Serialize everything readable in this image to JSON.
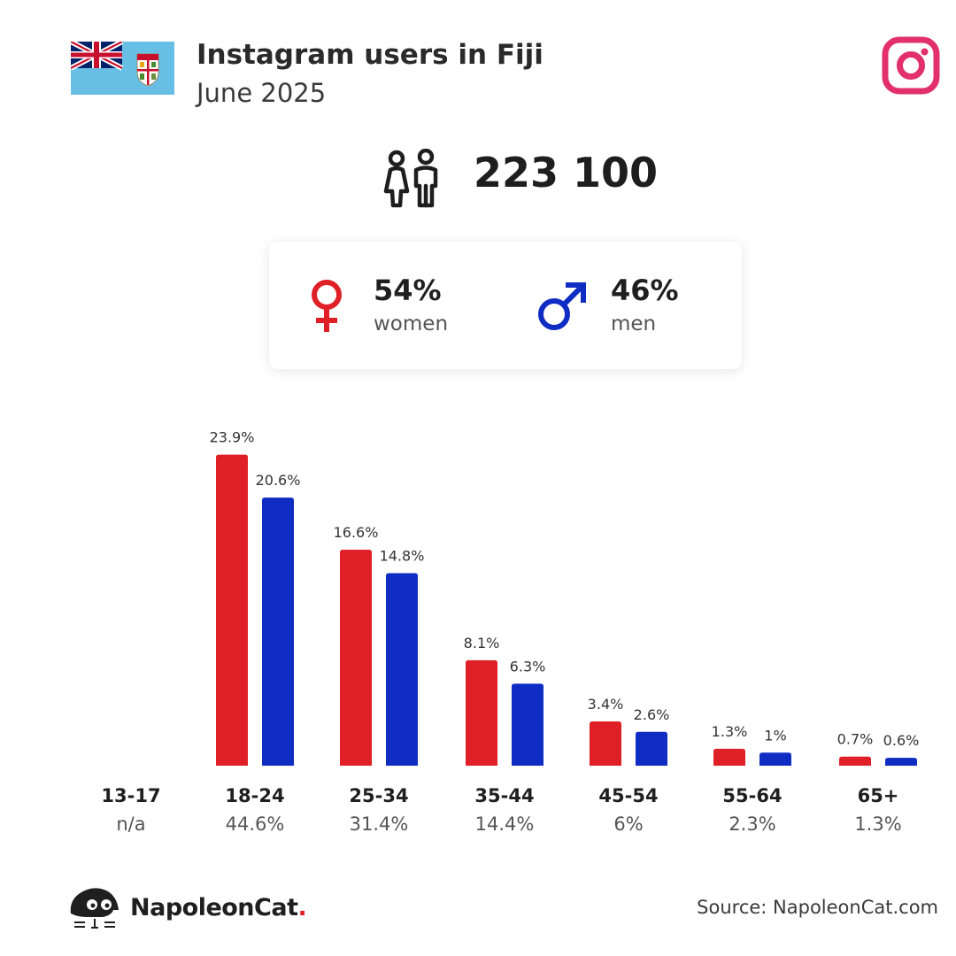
{
  "header": {
    "title": "Instagram users in Fiji",
    "subtitle": "June 2025"
  },
  "summary": {
    "total_users": "223 100",
    "women_pct": "54%",
    "women_label": "women",
    "men_pct": "46%",
    "men_label": "men"
  },
  "colors": {
    "women": "#df2027",
    "men": "#0f2dc3",
    "instagram": "#e1306c",
    "flag_blue": "#68bfe5"
  },
  "icons": {
    "flag": "fiji-flag-icon",
    "instagram": "instagram-icon",
    "people": "people-icon",
    "female": "female-symbol-icon",
    "male": "male-symbol-icon",
    "brand": "napoleoncat-logo-icon"
  },
  "chart_data": {
    "type": "bar",
    "categories": [
      "13-17",
      "18-24",
      "25-34",
      "35-44",
      "45-54",
      "55-64",
      "65+"
    ],
    "category_totals": [
      "n/a",
      "44.6%",
      "31.4%",
      "14.4%",
      "6%",
      "2.3%",
      "1.3%"
    ],
    "series": [
      {
        "key": "women",
        "values": [
          null,
          23.9,
          16.6,
          8.1,
          3.4,
          1.3,
          0.7
        ],
        "labels": [
          "",
          "23.9%",
          "16.6%",
          "8.1%",
          "3.4%",
          "1.3%",
          "0.7%"
        ]
      },
      {
        "key": "men",
        "values": [
          null,
          20.6,
          14.8,
          6.3,
          2.6,
          1,
          0.6
        ],
        "labels": [
          "",
          "20.6%",
          "14.8%",
          "6.3%",
          "2.6%",
          "1%",
          "0.6%"
        ]
      }
    ],
    "grid": false,
    "legend": "none"
  },
  "footer": {
    "brand_name": "NapoleonCat",
    "brand_dot": ".",
    "source": "Source: NapoleonCat.com"
  }
}
